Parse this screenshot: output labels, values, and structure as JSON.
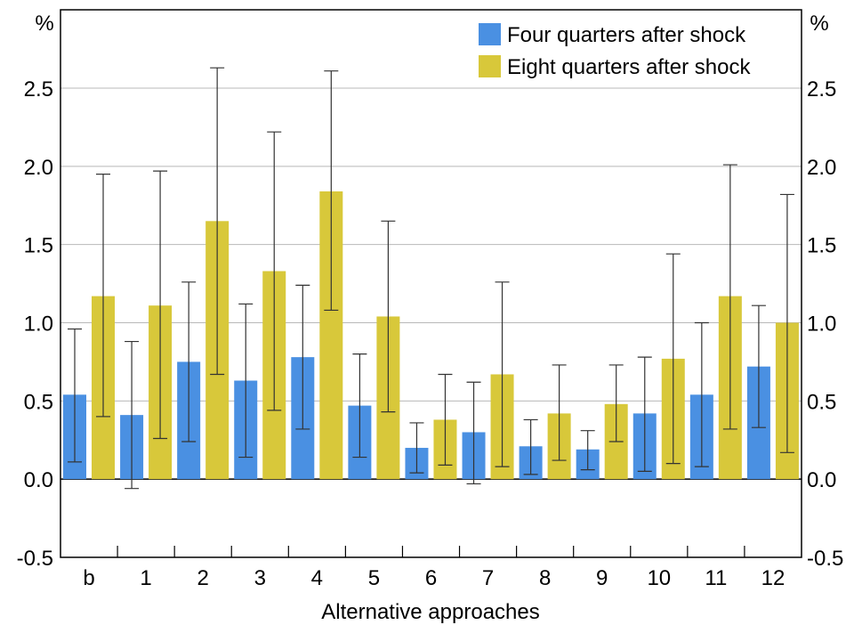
{
  "chart_data": {
    "type": "bar",
    "xlabel": "Alternative approaches",
    "ylabel_left": "%",
    "ylabel_right": "%",
    "ylim": [
      -0.5,
      2.5
    ],
    "yticks": [
      "2.5",
      "2.0",
      "1.5",
      "1.0",
      "0.5",
      "0.0",
      "-0.5"
    ],
    "ytick_values": [
      2.5,
      2.0,
      1.5,
      1.0,
      0.5,
      0.0,
      -0.5
    ],
    "grid": true,
    "legend_position": "top-right",
    "categories": [
      "b",
      "1",
      "2",
      "3",
      "4",
      "5",
      "6",
      "7",
      "8",
      "9",
      "10",
      "11",
      "12"
    ],
    "series": [
      {
        "name": "Four quarters after shock",
        "color": "#4a90e2",
        "values": [
          0.54,
          0.41,
          0.75,
          0.63,
          0.78,
          0.47,
          0.2,
          0.3,
          0.21,
          0.19,
          0.42,
          0.54,
          0.72
        ],
        "error_low": [
          0.11,
          -0.06,
          0.24,
          0.14,
          0.32,
          0.14,
          0.04,
          -0.03,
          0.03,
          0.06,
          0.05,
          0.08,
          0.33
        ],
        "error_high": [
          0.96,
          0.88,
          1.26,
          1.12,
          1.24,
          0.8,
          0.36,
          0.62,
          0.38,
          0.31,
          0.78,
          1.0,
          1.11
        ]
      },
      {
        "name": "Eight quarters after shock",
        "color": "#d8c83a",
        "values": [
          1.17,
          1.11,
          1.65,
          1.33,
          1.84,
          1.04,
          0.38,
          0.67,
          0.42,
          0.48,
          0.77,
          1.17,
          1.0
        ],
        "error_low": [
          0.4,
          0.26,
          0.67,
          0.44,
          1.08,
          0.43,
          0.09,
          0.08,
          0.12,
          0.24,
          0.1,
          0.32,
          0.17
        ],
        "error_high": [
          1.95,
          1.97,
          2.63,
          2.22,
          2.61,
          1.65,
          0.67,
          1.26,
          0.73,
          0.73,
          1.44,
          2.01,
          1.82
        ]
      }
    ]
  }
}
